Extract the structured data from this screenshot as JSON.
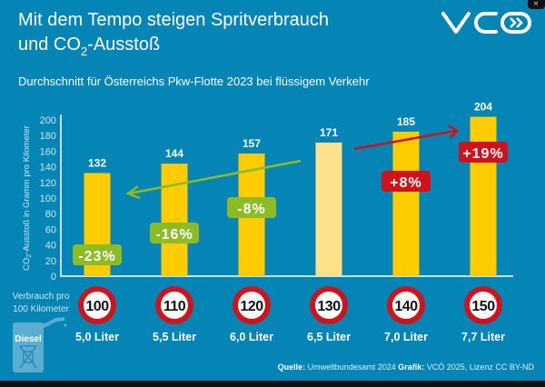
{
  "title_line1": "Mit dem Tempo steigen Spritverbrauch",
  "title_line2_pre": "und CO",
  "title_line2_sub": "2",
  "title_line2_post": "-Ausstoß",
  "subtitle": "Durchschnitt für Österreichs Pkw-Flotte 2023 bei flüssigem Verkehr",
  "logo": "VCÖ",
  "close_icon": "close-icon",
  "colors": {
    "background": "#0585b5",
    "bar": "#ffcc00",
    "bar_reference": "#ffe08a",
    "decrease": "#8dbb25",
    "increase": "#d0121b"
  },
  "consumption_label_line1": "Verbrauch pro",
  "consumption_label_line2": "100 Kilometer",
  "fuel_icon_label": "Diesel",
  "source_label": "Quelle:",
  "source_text": "Umweltbundesamt 2024",
  "graphic_label": "Grafik:",
  "graphic_text": "VCÖ 2025, Lizenz CC BY-ND",
  "chart_data": {
    "type": "bar",
    "categories": [
      "100",
      "110",
      "120",
      "130",
      "140",
      "150"
    ],
    "consumption": [
      "5,0 Liter",
      "5,5 Liter",
      "6,0 Liter",
      "6,5 Liter",
      "7,0 Liter",
      "7,7 Liter"
    ],
    "values": [
      132,
      144,
      157,
      171,
      185,
      204
    ],
    "reference_category": "130",
    "change_labels": [
      "-23%",
      "-16%",
      "-8%",
      "",
      "+8%",
      "+19%"
    ],
    "ylabel_pre": "CO",
    "ylabel_sub": "2",
    "ylabel_post": "-Ausstoß in Gramm pro Kilometer",
    "ylim": [
      0,
      200
    ],
    "yticks": [
      0,
      20,
      40,
      60,
      80,
      100,
      120,
      140,
      160,
      180,
      200
    ],
    "grid": false
  }
}
